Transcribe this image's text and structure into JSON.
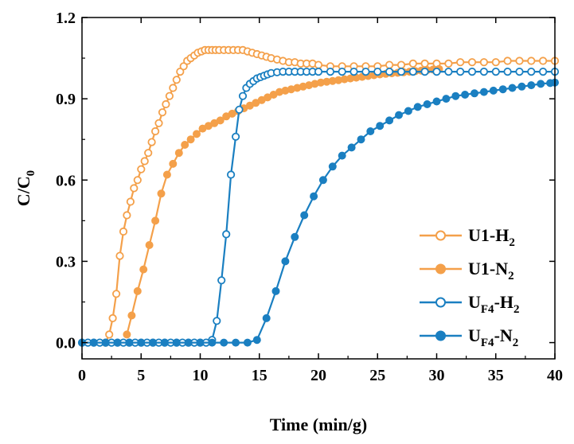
{
  "chart_data": {
    "type": "line",
    "xlabel": "Time (min/g)",
    "ylabel": {
      "main": "C/C",
      "sub": "0"
    },
    "xlim": [
      0,
      40
    ],
    "ylim": [
      -0.06,
      1.2
    ],
    "xticks": [
      0,
      5,
      10,
      15,
      20,
      25,
      30,
      35,
      40
    ],
    "xtick_labels": [
      "0",
      "5",
      "10",
      "15",
      "20",
      "25",
      "30",
      "35",
      "40"
    ],
    "yticks": [
      0.0,
      0.3,
      0.6,
      0.9,
      1.2
    ],
    "ytick_labels": [
      "0.0",
      "0.3",
      "0.6",
      "0.9",
      "1.2"
    ],
    "grid": false,
    "legend": "bottom-right",
    "series": [
      {
        "name": "U1-H2",
        "label_main": "U1-H",
        "label_sub": "2",
        "color": "#f4a04a",
        "marker": "open-circle",
        "x": [
          2.0,
          2.3,
          2.6,
          2.9,
          3.2,
          3.5,
          3.8,
          4.1,
          4.4,
          4.7,
          5.0,
          5.3,
          5.6,
          5.9,
          6.2,
          6.5,
          6.8,
          7.1,
          7.4,
          7.7,
          8.0,
          8.3,
          8.6,
          8.9,
          9.2,
          9.5,
          9.8,
          10.1,
          10.4,
          10.7,
          11.0,
          11.3,
          11.6,
          12.0,
          12.4,
          12.8,
          13.2,
          13.6,
          14.0,
          14.4,
          14.8,
          15.2,
          15.6,
          16.0,
          16.5,
          17.0,
          17.5,
          18.0,
          18.5,
          19.0,
          19.5,
          20.0,
          21.0,
          22.0,
          23.0,
          24.0,
          25.0,
          26.0,
          27.0,
          28.0,
          29.0,
          30.0,
          31.0,
          32.0,
          33.0,
          34.0,
          35.0,
          36.0,
          37.0,
          38.0,
          39.0,
          40.0
        ],
        "y": [
          0.0,
          0.03,
          0.09,
          0.18,
          0.32,
          0.41,
          0.47,
          0.52,
          0.57,
          0.6,
          0.64,
          0.67,
          0.7,
          0.74,
          0.78,
          0.81,
          0.85,
          0.88,
          0.91,
          0.94,
          0.97,
          1.0,
          1.02,
          1.04,
          1.05,
          1.06,
          1.07,
          1.075,
          1.08,
          1.08,
          1.08,
          1.08,
          1.08,
          1.08,
          1.08,
          1.08,
          1.08,
          1.08,
          1.075,
          1.07,
          1.065,
          1.06,
          1.055,
          1.05,
          1.045,
          1.04,
          1.035,
          1.035,
          1.03,
          1.03,
          1.03,
          1.025,
          1.02,
          1.02,
          1.02,
          1.02,
          1.02,
          1.025,
          1.025,
          1.03,
          1.03,
          1.03,
          1.03,
          1.035,
          1.035,
          1.035,
          1.035,
          1.04,
          1.04,
          1.04,
          1.04,
          1.04
        ]
      },
      {
        "name": "U1-N2",
        "label_main": "U1-N",
        "label_sub": "2",
        "color": "#f4a04a",
        "marker": "filled-circle",
        "x": [
          3.8,
          4.2,
          4.7,
          5.2,
          5.7,
          6.2,
          6.7,
          7.2,
          7.7,
          8.2,
          8.7,
          9.2,
          9.7,
          10.2,
          10.7,
          11.2,
          11.7,
          12.2,
          12.7,
          13.2,
          13.7,
          14.2,
          14.7,
          15.2,
          15.7,
          16.2,
          16.7,
          17.2,
          17.7,
          18.2,
          18.7,
          19.2,
          19.7,
          20.2,
          20.7,
          21.2,
          21.7,
          22.2,
          22.7,
          23.2,
          23.7,
          24.2,
          24.7,
          25.2,
          25.7,
          26.2,
          26.7,
          27.2,
          27.7,
          28.2,
          28.7,
          29.2,
          29.7,
          30.2
        ],
        "y": [
          0.03,
          0.1,
          0.19,
          0.27,
          0.36,
          0.45,
          0.55,
          0.62,
          0.66,
          0.7,
          0.73,
          0.75,
          0.77,
          0.79,
          0.8,
          0.81,
          0.82,
          0.835,
          0.845,
          0.855,
          0.865,
          0.875,
          0.885,
          0.895,
          0.905,
          0.915,
          0.925,
          0.93,
          0.935,
          0.94,
          0.945,
          0.95,
          0.955,
          0.96,
          0.963,
          0.966,
          0.969,
          0.972,
          0.975,
          0.978,
          0.981,
          0.984,
          0.987,
          0.99,
          0.992,
          0.994,
          0.996,
          0.998,
          1.0,
          1.002,
          1.004,
          1.006,
          1.008,
          1.01
        ]
      },
      {
        "name": "UF4-H2",
        "label_main": "U",
        "label_mid": "F4",
        "label_dash": "-H",
        "label_sub": "2",
        "color": "#1a7fc1",
        "marker": "open-circle",
        "x": [
          0.0,
          0.5,
          1.0,
          1.5,
          2.0,
          2.5,
          3.0,
          3.5,
          4.0,
          4.5,
          5.0,
          5.5,
          6.0,
          6.5,
          7.0,
          7.5,
          8.0,
          8.5,
          9.0,
          9.5,
          10.0,
          10.5,
          11.0,
          11.4,
          11.8,
          12.2,
          12.6,
          13.0,
          13.3,
          13.6,
          13.9,
          14.2,
          14.5,
          14.8,
          15.1,
          15.4,
          15.7,
          16.0,
          16.5,
          17.0,
          17.5,
          18.0,
          18.5,
          19.0,
          19.5,
          20.0,
          21.0,
          22.0,
          23.0,
          24.0,
          25.0,
          26.0,
          27.0,
          28.0,
          29.0,
          30.0,
          31.0,
          32.0,
          33.0,
          34.0,
          35.0,
          36.0,
          37.0,
          38.0,
          39.0,
          40.0
        ],
        "y": [
          0.0,
          0.0,
          0.0,
          0.0,
          0.0,
          0.0,
          0.0,
          0.0,
          0.0,
          0.0,
          0.0,
          0.0,
          0.0,
          0.0,
          0.0,
          0.0,
          0.0,
          0.0,
          0.0,
          0.0,
          0.0,
          0.0,
          0.01,
          0.08,
          0.23,
          0.4,
          0.62,
          0.76,
          0.86,
          0.91,
          0.94,
          0.955,
          0.965,
          0.975,
          0.98,
          0.985,
          0.99,
          0.995,
          0.998,
          1.0,
          1.0,
          1.0,
          1.0,
          1.0,
          1.0,
          1.0,
          1.0,
          1.0,
          1.0,
          1.0,
          1.0,
          1.0,
          1.0,
          1.0,
          1.0,
          1.0,
          1.0,
          1.0,
          1.0,
          1.0,
          1.0,
          1.0,
          1.0,
          1.0,
          1.0,
          1.0
        ]
      },
      {
        "name": "UF4-N2",
        "label_main": "U",
        "label_mid": "F4",
        "label_dash": "-N",
        "label_sub": "2",
        "color": "#1a7fc1",
        "marker": "filled-circle",
        "x": [
          0.0,
          1.0,
          2.0,
          3.0,
          4.0,
          5.0,
          6.0,
          7.0,
          8.0,
          9.0,
          10.0,
          11.0,
          12.0,
          13.0,
          14.0,
          14.8,
          15.6,
          16.4,
          17.2,
          18.0,
          18.8,
          19.6,
          20.4,
          21.2,
          22.0,
          22.8,
          23.6,
          24.4,
          25.2,
          26.0,
          26.8,
          27.6,
          28.4,
          29.2,
          30.0,
          30.8,
          31.6,
          32.4,
          33.2,
          34.0,
          34.8,
          35.6,
          36.4,
          37.2,
          38.0,
          38.8,
          39.6,
          40.0
        ],
        "y": [
          0.0,
          0.0,
          0.0,
          0.0,
          0.0,
          0.0,
          0.0,
          0.0,
          0.0,
          0.0,
          0.0,
          0.0,
          0.0,
          0.0,
          0.0,
          0.01,
          0.09,
          0.19,
          0.3,
          0.39,
          0.47,
          0.54,
          0.6,
          0.65,
          0.69,
          0.72,
          0.75,
          0.78,
          0.8,
          0.82,
          0.84,
          0.855,
          0.87,
          0.88,
          0.89,
          0.9,
          0.91,
          0.915,
          0.92,
          0.925,
          0.93,
          0.935,
          0.94,
          0.945,
          0.95,
          0.955,
          0.958,
          0.96
        ]
      }
    ]
  }
}
